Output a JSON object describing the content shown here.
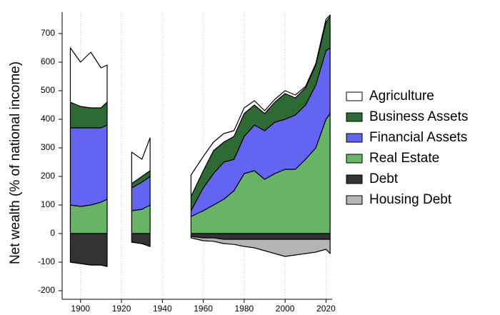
{
  "chart_data": {
    "type": "stacked-area",
    "y_label": "Net wealth (% of national income)",
    "x": [
      1895,
      1900,
      1905,
      1910,
      1913,
      1918,
      1925,
      1930,
      1934,
      1945,
      1954,
      1960,
      1965,
      1970,
      1975,
      1980,
      1985,
      1990,
      1995,
      2000,
      2005,
      2010,
      2015,
      2020,
      2022
    ],
    "xlim": [
      1891,
      2023
    ],
    "xticks": [
      1900,
      1920,
      1940,
      1960,
      1980,
      2000,
      2020
    ],
    "ylim": [
      -230,
      775
    ],
    "yticks": [
      -200,
      -100,
      0,
      100,
      200,
      300,
      400,
      500,
      600,
      700
    ],
    "grid": true,
    "series": [
      {
        "name": "Agriculture",
        "color": "#ffffff",
        "values": [
          190,
          155,
          195,
          140,
          130,
          null,
          110,
          60,
          115,
          null,
          75,
          50,
          30,
          30,
          20,
          20,
          15,
          10,
          10,
          10,
          10,
          5,
          5,
          10,
          5
        ]
      },
      {
        "name": "Business Assets",
        "color": "#2e6b34",
        "values": [
          90,
          75,
          70,
          70,
          80,
          null,
          15,
          20,
          20,
          null,
          50,
          60,
          80,
          70,
          80,
          80,
          70,
          60,
          70,
          90,
          60,
          60,
          70,
          100,
          110
        ]
      },
      {
        "name": "Financial Assets",
        "color": "#6464f2",
        "values": [
          270,
          275,
          270,
          260,
          260,
          null,
          80,
          95,
          100,
          null,
          20,
          80,
          110,
          130,
          110,
          130,
          160,
          170,
          180,
          175,
          190,
          190,
          220,
          240,
          230
        ]
      },
      {
        "name": "Real Estate",
        "color": "#67b467",
        "values": [
          100,
          95,
          100,
          110,
          120,
          null,
          80,
          85,
          100,
          null,
          60,
          80,
          100,
          120,
          150,
          210,
          220,
          190,
          210,
          225,
          225,
          260,
          300,
          400,
          420
        ]
      },
      {
        "name": "Debt",
        "color": "#333333",
        "values": [
          -100,
          -105,
          -110,
          -110,
          -115,
          null,
          -30,
          -35,
          -45,
          null,
          -10,
          -15,
          -15,
          -20,
          -20,
          -20,
          -20,
          -20,
          -20,
          -20,
          -20,
          -20,
          -20,
          -20,
          -20
        ]
      },
      {
        "name": "Housing Debt",
        "color": "#b4b4b4",
        "values": [
          0,
          0,
          0,
          0,
          0,
          null,
          0,
          0,
          0,
          null,
          -5,
          -10,
          -12,
          -15,
          -18,
          -25,
          -30,
          -40,
          -50,
          -60,
          -55,
          -50,
          -45,
          -35,
          -50
        ]
      }
    ]
  }
}
